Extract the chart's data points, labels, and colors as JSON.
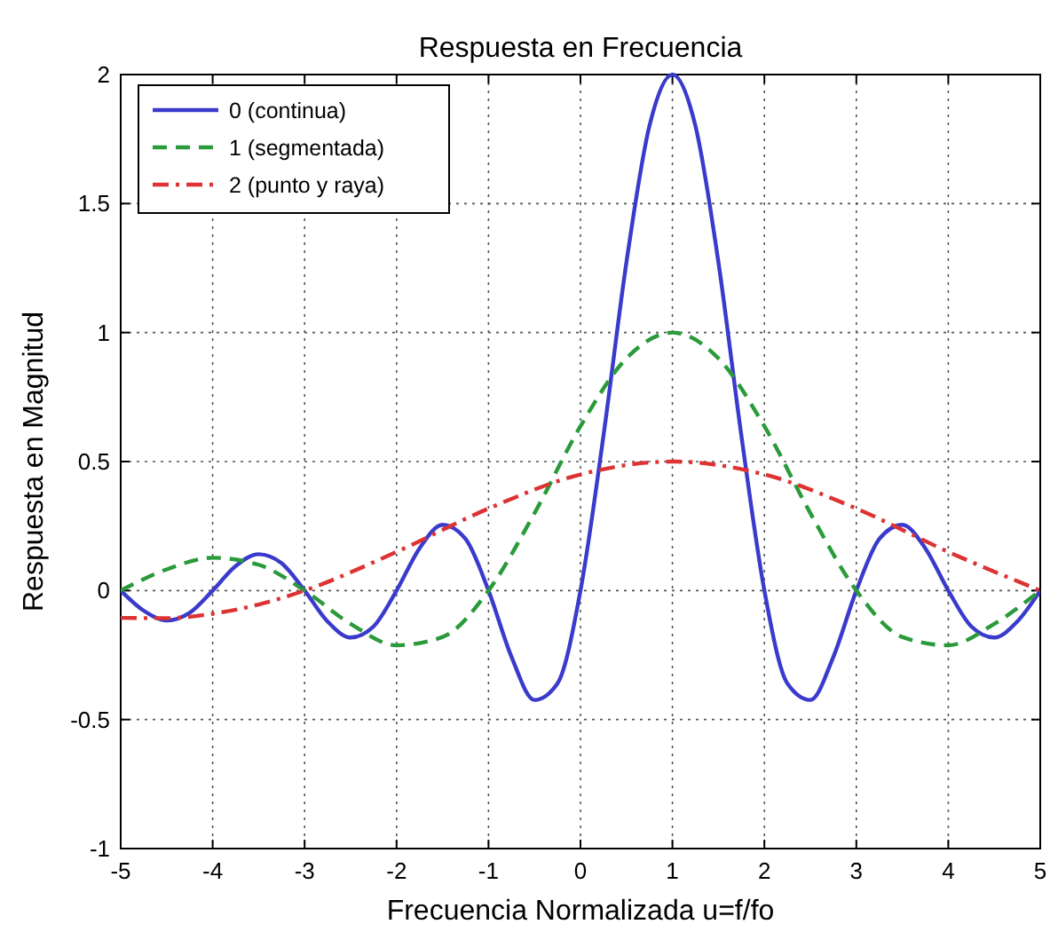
{
  "chart_data": {
    "type": "line",
    "title": "Respuesta en Frecuencia",
    "xlabel": "Frecuencia Normalizada u=f/fo",
    "ylabel": "Respuesta en Magnitud",
    "xlim": [
      -5,
      5
    ],
    "ylim": [
      -1,
      2
    ],
    "xticks": [
      -5,
      -4,
      -3,
      -2,
      -1,
      0,
      1,
      2,
      3,
      4,
      5
    ],
    "yticks": [
      -1,
      -0.5,
      0,
      0.5,
      1,
      1.5,
      2
    ],
    "grid": true,
    "legend": "top left",
    "marker": "none",
    "series": [
      {
        "name": "0 (continua)",
        "color": "#3a3acc",
        "line_style": "solid",
        "x": [
          -5,
          -4.75,
          -4.5,
          -4.25,
          -4,
          -3.75,
          -3.5,
          -3.25,
          -3,
          -2.75,
          -2.5,
          -2.25,
          -2,
          -1.75,
          -1.5,
          -1.25,
          -1,
          -0.75,
          -0.5,
          -0.25,
          0,
          0.25,
          0.5,
          0.75,
          1,
          1.25,
          1.5,
          1.75,
          2,
          2.25,
          2.5,
          2.75,
          3,
          3.25,
          3.5,
          3.75,
          4,
          4.25,
          4.5,
          4.75,
          5
        ],
        "values": [
          0,
          -0.078,
          -0.116,
          -0.086,
          0,
          0.095,
          0.141,
          0.106,
          0,
          -0.12,
          -0.182,
          -0.139,
          0,
          0.164,
          0.255,
          0.2,
          0,
          -0.257,
          -0.424,
          -0.36,
          0,
          0.6,
          1.273,
          1.801,
          2,
          1.801,
          1.273,
          0.6,
          0,
          -0.36,
          -0.424,
          -0.257,
          0,
          0.2,
          0.255,
          0.164,
          0,
          -0.139,
          -0.182,
          -0.12,
          0
        ]
      },
      {
        "name": "1 (segmentada)",
        "color": "#2a9a3a",
        "line_style": "dashed",
        "x": [
          -5,
          -4.5,
          -4,
          -3.5,
          -3,
          -2.5,
          -2,
          -1.5,
          -1,
          -0.5,
          0,
          0.5,
          1,
          1.5,
          2,
          2.5,
          3,
          3.5,
          4,
          4.5,
          5
        ],
        "values": [
          0,
          0.082,
          0.127,
          0.1,
          0,
          -0.129,
          -0.212,
          -0.18,
          0,
          0.3,
          0.637,
          0.9,
          1,
          0.9,
          0.637,
          0.3,
          0,
          -0.18,
          -0.212,
          -0.129,
          0
        ]
      },
      {
        "name": "2 (punto y raya)",
        "color": "#dd3333",
        "line_style": "dashdot",
        "x": [
          -5,
          -4.5,
          -4,
          -3.5,
          -3,
          -2,
          -1,
          0,
          1,
          2,
          3,
          4,
          5
        ],
        "values": [
          -0.106,
          -0.107,
          -0.09,
          -0.054,
          0,
          0.15,
          0.318,
          0.45,
          0.5,
          0.45,
          0.318,
          0.15,
          0
        ]
      }
    ]
  }
}
